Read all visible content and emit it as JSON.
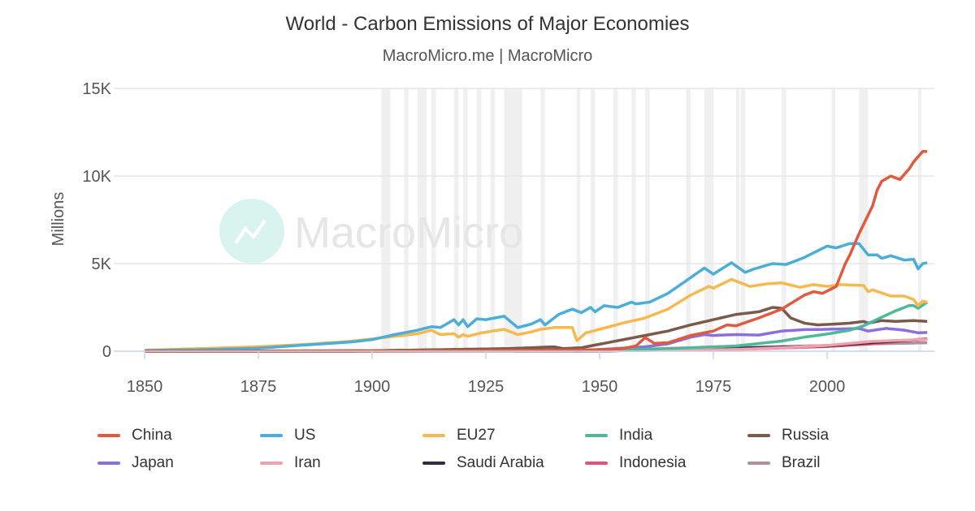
{
  "chart_data": {
    "type": "line",
    "title": "World - Carbon Emissions of Major Economies",
    "subtitle": "MacroMicro.me | MacroMicro",
    "watermark": "MacroMicro",
    "ylabel": "Millions",
    "xlabel": "",
    "xlim": [
      1850,
      2022
    ],
    "ylim": [
      0,
      15000
    ],
    "x_ticks": [
      "1850",
      "1875",
      "1900",
      "1925",
      "1950",
      "1975",
      "2000"
    ],
    "y_ticks": [
      {
        "v": 0,
        "label": "0"
      },
      {
        "v": 5000,
        "label": "5K"
      },
      {
        "v": 10000,
        "label": "10K"
      },
      {
        "v": 15000,
        "label": "15K"
      }
    ],
    "grid": true,
    "legend_position": "bottom",
    "shaded_periods": [
      [
        1902,
        1904
      ],
      [
        1907,
        1908
      ],
      [
        1910,
        1912
      ],
      [
        1913,
        1914
      ],
      [
        1918,
        1919
      ],
      [
        1920,
        1921
      ],
      [
        1923,
        1924
      ],
      [
        1926,
        1927
      ],
      [
        1929,
        1933
      ],
      [
        1937,
        1938
      ],
      [
        1945,
        1945.8
      ],
      [
        1948,
        1949
      ],
      [
        1953,
        1954
      ],
      [
        1957,
        1958
      ],
      [
        1960,
        1961
      ],
      [
        1969,
        1970
      ],
      [
        1973,
        1975
      ],
      [
        1980,
        1980.6
      ],
      [
        1981,
        1982
      ],
      [
        1990,
        1991
      ],
      [
        2001,
        2001.8
      ],
      [
        2007,
        2009
      ],
      [
        2020,
        2020.5
      ]
    ],
    "series": [
      {
        "name": "China",
        "color": "#e05a3f",
        "points": [
          [
            1850,
            0
          ],
          [
            1900,
            5
          ],
          [
            1950,
            80
          ],
          [
            1955,
            150
          ],
          [
            1958,
            300
          ],
          [
            1960,
            780
          ],
          [
            1962,
            450
          ],
          [
            1965,
            480
          ],
          [
            1970,
            900
          ],
          [
            1975,
            1150
          ],
          [
            1978,
            1500
          ],
          [
            1980,
            1450
          ],
          [
            1985,
            1900
          ],
          [
            1990,
            2400
          ],
          [
            1995,
            3200
          ],
          [
            1997,
            3400
          ],
          [
            1999,
            3300
          ],
          [
            2002,
            3700
          ],
          [
            2004,
            5000
          ],
          [
            2005,
            5500
          ],
          [
            2007,
            6700
          ],
          [
            2010,
            8300
          ],
          [
            2011,
            9200
          ],
          [
            2012,
            9700
          ],
          [
            2014,
            10000
          ],
          [
            2016,
            9800
          ],
          [
            2018,
            10400
          ],
          [
            2019,
            10800
          ],
          [
            2021,
            11400
          ],
          [
            2022,
            11400
          ]
        ]
      },
      {
        "name": "US",
        "color": "#4aaed9",
        "points": [
          [
            1850,
            40
          ],
          [
            1865,
            100
          ],
          [
            1875,
            170
          ],
          [
            1885,
            350
          ],
          [
            1895,
            520
          ],
          [
            1900,
            660
          ],
          [
            1905,
            950
          ],
          [
            1910,
            1200
          ],
          [
            1913,
            1400
          ],
          [
            1915,
            1350
          ],
          [
            1918,
            1800
          ],
          [
            1919,
            1500
          ],
          [
            1920,
            1800
          ],
          [
            1921,
            1400
          ],
          [
            1923,
            1850
          ],
          [
            1925,
            1800
          ],
          [
            1929,
            2000
          ],
          [
            1932,
            1350
          ],
          [
            1935,
            1550
          ],
          [
            1937,
            1800
          ],
          [
            1938,
            1500
          ],
          [
            1941,
            2100
          ],
          [
            1944,
            2400
          ],
          [
            1946,
            2200
          ],
          [
            1948,
            2500
          ],
          [
            1949,
            2250
          ],
          [
            1951,
            2600
          ],
          [
            1954,
            2500
          ],
          [
            1957,
            2800
          ],
          [
            1958,
            2700
          ],
          [
            1961,
            2800
          ],
          [
            1965,
            3300
          ],
          [
            1970,
            4200
          ],
          [
            1973,
            4750
          ],
          [
            1975,
            4400
          ],
          [
            1979,
            5050
          ],
          [
            1982,
            4500
          ],
          [
            1984,
            4700
          ],
          [
            1988,
            5000
          ],
          [
            1991,
            4950
          ],
          [
            1995,
            5350
          ],
          [
            2000,
            6000
          ],
          [
            2002,
            5900
          ],
          [
            2005,
            6150
          ],
          [
            2007,
            6150
          ],
          [
            2009,
            5500
          ],
          [
            2011,
            5500
          ],
          [
            2012,
            5300
          ],
          [
            2014,
            5450
          ],
          [
            2017,
            5200
          ],
          [
            2019,
            5250
          ],
          [
            2020,
            4700
          ],
          [
            2021,
            5000
          ],
          [
            2022,
            5050
          ]
        ]
      },
      {
        "name": "EU27",
        "color": "#f5b94f",
        "points": [
          [
            1850,
            60
          ],
          [
            1865,
            170
          ],
          [
            1875,
            260
          ],
          [
            1885,
            380
          ],
          [
            1895,
            560
          ],
          [
            1900,
            700
          ],
          [
            1905,
            850
          ],
          [
            1910,
            1000
          ],
          [
            1913,
            1200
          ],
          [
            1915,
            950
          ],
          [
            1918,
            1000
          ],
          [
            1919,
            800
          ],
          [
            1920,
            950
          ],
          [
            1921,
            850
          ],
          [
            1924,
            1050
          ],
          [
            1929,
            1250
          ],
          [
            1932,
            950
          ],
          [
            1935,
            1100
          ],
          [
            1937,
            1250
          ],
          [
            1940,
            1350
          ],
          [
            1944,
            1350
          ],
          [
            1945,
            600
          ],
          [
            1947,
            1050
          ],
          [
            1950,
            1250
          ],
          [
            1955,
            1600
          ],
          [
            1960,
            1900
          ],
          [
            1965,
            2400
          ],
          [
            1970,
            3200
          ],
          [
            1974,
            3700
          ],
          [
            1975,
            3600
          ],
          [
            1979,
            4100
          ],
          [
            1983,
            3700
          ],
          [
            1987,
            3850
          ],
          [
            1990,
            3900
          ],
          [
            1994,
            3650
          ],
          [
            1997,
            3800
          ],
          [
            2000,
            3700
          ],
          [
            2003,
            3800
          ],
          [
            2008,
            3750
          ],
          [
            2009,
            3400
          ],
          [
            2010,
            3500
          ],
          [
            2014,
            3150
          ],
          [
            2017,
            3150
          ],
          [
            2019,
            2950
          ],
          [
            2020,
            2600
          ],
          [
            2021,
            2850
          ],
          [
            2022,
            2800
          ]
        ]
      },
      {
        "name": "India",
        "color": "#4db89a",
        "points": [
          [
            1850,
            0
          ],
          [
            1900,
            15
          ],
          [
            1950,
            60
          ],
          [
            1960,
            120
          ],
          [
            1970,
            200
          ],
          [
            1980,
            300
          ],
          [
            1990,
            580
          ],
          [
            1995,
            800
          ],
          [
            2000,
            980
          ],
          [
            2005,
            1200
          ],
          [
            2008,
            1450
          ],
          [
            2010,
            1700
          ],
          [
            2015,
            2300
          ],
          [
            2018,
            2600
          ],
          [
            2019,
            2600
          ],
          [
            2020,
            2450
          ],
          [
            2022,
            2800
          ]
        ]
      },
      {
        "name": "Russia",
        "color": "#7a5a4a",
        "points": [
          [
            1850,
            0
          ],
          [
            1900,
            30
          ],
          [
            1930,
            150
          ],
          [
            1940,
            250
          ],
          [
            1942,
            150
          ],
          [
            1946,
            200
          ],
          [
            1950,
            400
          ],
          [
            1960,
            900
          ],
          [
            1965,
            1150
          ],
          [
            1970,
            1500
          ],
          [
            1975,
            1800
          ],
          [
            1980,
            2100
          ],
          [
            1985,
            2250
          ],
          [
            1988,
            2500
          ],
          [
            1990,
            2450
          ],
          [
            1992,
            1900
          ],
          [
            1995,
            1600
          ],
          [
            1998,
            1500
          ],
          [
            2005,
            1600
          ],
          [
            2008,
            1700
          ],
          [
            2009,
            1600
          ],
          [
            2012,
            1750
          ],
          [
            2015,
            1700
          ],
          [
            2019,
            1750
          ],
          [
            2022,
            1700
          ]
        ]
      },
      {
        "name": "Japan",
        "color": "#8c6fdc",
        "points": [
          [
            1850,
            0
          ],
          [
            1900,
            20
          ],
          [
            1940,
            100
          ],
          [
            1945,
            30
          ],
          [
            1950,
            100
          ],
          [
            1960,
            250
          ],
          [
            1965,
            420
          ],
          [
            1970,
            800
          ],
          [
            1973,
            950
          ],
          [
            1975,
            900
          ],
          [
            1980,
            950
          ],
          [
            1985,
            920
          ],
          [
            1990,
            1150
          ],
          [
            1995,
            1230
          ],
          [
            2000,
            1250
          ],
          [
            2007,
            1300
          ],
          [
            2009,
            1150
          ],
          [
            2013,
            1300
          ],
          [
            2017,
            1200
          ],
          [
            2020,
            1050
          ],
          [
            2022,
            1070
          ]
        ]
      },
      {
        "name": "Iran",
        "color": "#f2a0ac",
        "points": [
          [
            1850,
            0
          ],
          [
            1950,
            20
          ],
          [
            1980,
            100
          ],
          [
            1990,
            200
          ],
          [
            2000,
            330
          ],
          [
            2010,
            560
          ],
          [
            2022,
            680
          ]
        ]
      },
      {
        "name": "Saudi Arabia",
        "color": "#2d2f3e",
        "points": [
          [
            1850,
            0
          ],
          [
            1950,
            5
          ],
          [
            1980,
            170
          ],
          [
            2000,
            300
          ],
          [
            2010,
            500
          ],
          [
            2022,
            680
          ]
        ]
      },
      {
        "name": "Indonesia",
        "color": "#e6507a",
        "points": [
          [
            1850,
            0
          ],
          [
            1950,
            20
          ],
          [
            1980,
            100
          ],
          [
            2000,
            270
          ],
          [
            2010,
            420
          ],
          [
            2022,
            720
          ]
        ]
      },
      {
        "name": "Brazil",
        "color": "#b08fa0",
        "points": [
          [
            1850,
            0
          ],
          [
            1950,
            20
          ],
          [
            1980,
            200
          ],
          [
            2000,
            330
          ],
          [
            2010,
            420
          ],
          [
            2022,
            480
          ]
        ]
      }
    ]
  }
}
